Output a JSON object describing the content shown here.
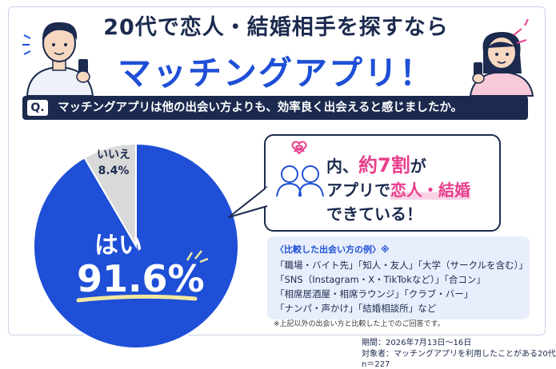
{
  "title_line1": "20代で恋人・結婚相手を探すなら",
  "title_line2": "マッチングアプリ！",
  "question": {
    "badge": "Q.",
    "text": "マッチングアプリは他の出会い方よりも、効率良く出会えると感じましたか。"
  },
  "chart_data": {
    "type": "pie",
    "slices": [
      {
        "label": "はい",
        "value": 91.6,
        "display": "91.6%",
        "color": "#1e4fd6"
      },
      {
        "label": "いいえ",
        "value": 8.4,
        "display": "8.4%",
        "color": "#d9d9d9"
      }
    ]
  },
  "bubble": {
    "line1_pre": "内、",
    "line1_hl": "約7割",
    "line1_post": "が",
    "line2_pre": "アプリで",
    "line2_hl": "恋人・結婚",
    "line3": "できている！"
  },
  "examples": {
    "title": "〈比較した出会い方の例〉※",
    "lines": [
      "「職場・バイト先」「知人・友人」「大学（サークルを含む）」",
      "「SNS（Instagram・X・TikTokなど）」「合コン」",
      "「相席居酒屋・相席ラウンジ」「クラブ・バー」",
      "「ナンパ・声かけ」「結婚相談所」など"
    ]
  },
  "note": "※上記以外の出会い方と比較した上でのご回答です。",
  "meta": {
    "period": "期間：2026年7月13日〜16日",
    "target": "対象者：マッチングアプリを利用したことがある20代",
    "n": "n＝227"
  },
  "colors": {
    "accent": "#1e4fd6",
    "navy": "#1b2a4e",
    "pink": "#e83e8c"
  }
}
